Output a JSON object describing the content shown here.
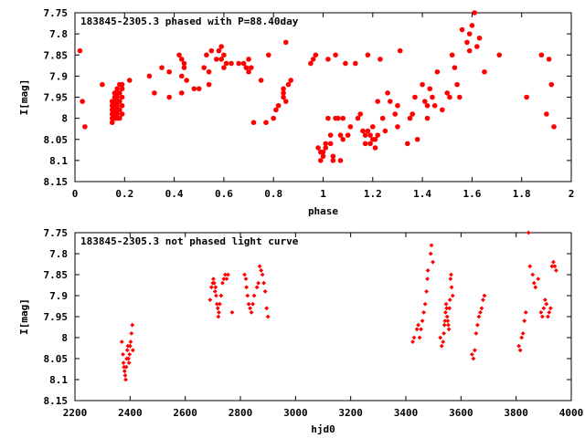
{
  "colors": {
    "points": "#ff0000",
    "axes": "#000000",
    "background": "#ffffff"
  },
  "chart_data": [
    {
      "type": "scatter",
      "title": "183845-2305.3 phased with P=88.40day",
      "xlabel": "phase",
      "ylabel": "I[mag]",
      "xlim": [
        0,
        2
      ],
      "ylim": [
        7.75,
        8.15
      ],
      "y_inverted": true,
      "grid": false,
      "marker": "filled-circle",
      "x_ticks": [
        "0",
        "0.2",
        "0.4",
        "0.6",
        "0.8",
        "1",
        "1.2",
        "1.4",
        "1.6",
        "1.8",
        "2"
      ],
      "y_ticks": [
        "7.75",
        "7.8",
        "7.85",
        "7.9",
        "7.95",
        "8",
        "8.05",
        "8.1",
        "8.15"
      ],
      "points": [
        [
          0.02,
          7.84
        ],
        [
          0.03,
          7.96
        ],
        [
          0.04,
          8.02
        ],
        [
          0.11,
          7.92
        ],
        [
          0.15,
          7.96
        ],
        [
          0.15,
          7.97
        ],
        [
          0.15,
          7.98
        ],
        [
          0.15,
          7.99
        ],
        [
          0.15,
          8.0
        ],
        [
          0.15,
          8.01
        ],
        [
          0.16,
          7.94
        ],
        [
          0.16,
          7.95
        ],
        [
          0.16,
          7.96
        ],
        [
          0.16,
          7.97
        ],
        [
          0.16,
          7.98
        ],
        [
          0.16,
          7.99
        ],
        [
          0.16,
          8.0
        ],
        [
          0.17,
          7.93
        ],
        [
          0.17,
          7.94
        ],
        [
          0.17,
          7.95
        ],
        [
          0.17,
          7.96
        ],
        [
          0.17,
          7.97
        ],
        [
          0.17,
          7.98
        ],
        [
          0.17,
          7.99
        ],
        [
          0.17,
          8.0
        ],
        [
          0.18,
          7.92
        ],
        [
          0.18,
          7.94
        ],
        [
          0.18,
          7.96
        ],
        [
          0.18,
          7.98
        ],
        [
          0.18,
          8.0
        ],
        [
          0.19,
          7.92
        ],
        [
          0.19,
          7.93
        ],
        [
          0.19,
          7.95
        ],
        [
          0.19,
          7.97
        ],
        [
          0.19,
          7.99
        ],
        [
          0.22,
          7.91
        ],
        [
          0.3,
          7.9
        ],
        [
          0.32,
          7.94
        ],
        [
          0.35,
          7.88
        ],
        [
          0.38,
          7.89
        ],
        [
          0.38,
          7.95
        ],
        [
          0.42,
          7.85
        ],
        [
          0.43,
          7.86
        ],
        [
          0.43,
          7.9
        ],
        [
          0.43,
          7.94
        ],
        [
          0.44,
          7.87
        ],
        [
          0.44,
          7.88
        ],
        [
          0.45,
          7.91
        ],
        [
          0.48,
          7.93
        ],
        [
          0.5,
          7.93
        ],
        [
          0.52,
          7.88
        ],
        [
          0.53,
          7.85
        ],
        [
          0.54,
          7.89
        ],
        [
          0.54,
          7.92
        ],
        [
          0.55,
          7.84
        ],
        [
          0.57,
          7.86
        ],
        [
          0.58,
          7.84
        ],
        [
          0.59,
          7.83
        ],
        [
          0.59,
          7.86
        ],
        [
          0.6,
          7.85
        ],
        [
          0.6,
          7.88
        ],
        [
          0.61,
          7.87
        ],
        [
          0.63,
          7.87
        ],
        [
          0.66,
          7.87
        ],
        [
          0.68,
          7.87
        ],
        [
          0.69,
          7.88
        ],
        [
          0.7,
          7.86
        ],
        [
          0.7,
          7.89
        ],
        [
          0.71,
          7.88
        ],
        [
          0.72,
          8.01
        ],
        [
          0.75,
          7.91
        ],
        [
          0.77,
          8.01
        ],
        [
          0.78,
          7.85
        ],
        [
          0.8,
          8.0
        ],
        [
          0.81,
          7.98
        ],
        [
          0.82,
          7.97
        ],
        [
          0.84,
          7.93
        ],
        [
          0.84,
          7.94
        ],
        [
          0.84,
          7.95
        ],
        [
          0.85,
          7.96
        ],
        [
          0.85,
          7.82
        ],
        [
          0.86,
          7.92
        ],
        [
          0.87,
          7.91
        ],
        [
          0.95,
          7.87
        ],
        [
          0.96,
          7.86
        ],
        [
          0.97,
          7.85
        ],
        [
          0.98,
          8.07
        ],
        [
          0.99,
          8.08
        ],
        [
          0.99,
          8.1
        ],
        [
          1.0,
          8.09
        ],
        [
          1.0,
          8.08
        ],
        [
          1.01,
          8.07
        ],
        [
          1.01,
          8.06
        ],
        [
          1.02,
          7.86
        ],
        [
          1.02,
          8.0
        ],
        [
          1.03,
          8.04
        ],
        [
          1.03,
          8.06
        ],
        [
          1.04,
          8.09
        ],
        [
          1.04,
          8.1
        ],
        [
          1.05,
          7.85
        ],
        [
          1.05,
          8.0
        ],
        [
          1.06,
          8.0
        ],
        [
          1.07,
          8.04
        ],
        [
          1.07,
          8.1
        ],
        [
          1.08,
          8.0
        ],
        [
          1.08,
          8.05
        ],
        [
          1.09,
          7.87
        ],
        [
          1.1,
          8.04
        ],
        [
          1.11,
          8.02
        ],
        [
          1.13,
          7.87
        ],
        [
          1.14,
          8.0
        ],
        [
          1.15,
          7.99
        ],
        [
          1.16,
          8.03
        ],
        [
          1.17,
          8.04
        ],
        [
          1.17,
          8.06
        ],
        [
          1.18,
          8.03
        ],
        [
          1.19,
          8.04
        ],
        [
          1.19,
          8.06
        ],
        [
          1.2,
          8.05
        ],
        [
          1.21,
          8.05
        ],
        [
          1.22,
          8.04
        ],
        [
          1.22,
          7.96
        ],
        [
          1.23,
          7.86
        ],
        [
          1.18,
          7.85
        ],
        [
          1.2,
          8.02
        ],
        [
          1.21,
          8.07
        ],
        [
          1.24,
          8.0
        ],
        [
          1.25,
          8.03
        ],
        [
          1.26,
          7.94
        ],
        [
          1.27,
          7.96
        ],
        [
          1.29,
          7.99
        ],
        [
          1.3,
          8.02
        ],
        [
          1.3,
          7.97
        ],
        [
          1.31,
          7.84
        ],
        [
          1.34,
          8.06
        ],
        [
          1.35,
          8.0
        ],
        [
          1.36,
          7.99
        ],
        [
          1.37,
          7.95
        ],
        [
          1.38,
          8.05
        ],
        [
          1.4,
          7.92
        ],
        [
          1.41,
          7.96
        ],
        [
          1.42,
          8.0
        ],
        [
          1.42,
          7.97
        ],
        [
          1.43,
          7.93
        ],
        [
          1.44,
          7.95
        ],
        [
          1.45,
          7.97
        ],
        [
          1.46,
          7.89
        ],
        [
          1.48,
          7.98
        ],
        [
          1.5,
          7.94
        ],
        [
          1.51,
          7.95
        ],
        [
          1.52,
          7.85
        ],
        [
          1.53,
          7.88
        ],
        [
          1.54,
          7.92
        ],
        [
          1.55,
          7.95
        ],
        [
          1.56,
          7.79
        ],
        [
          1.58,
          7.82
        ],
        [
          1.59,
          7.8
        ],
        [
          1.59,
          7.84
        ],
        [
          1.6,
          7.78
        ],
        [
          1.61,
          7.75
        ],
        [
          1.62,
          7.83
        ],
        [
          1.63,
          7.81
        ],
        [
          1.65,
          7.89
        ],
        [
          1.71,
          7.85
        ],
        [
          1.82,
          7.95
        ],
        [
          1.88,
          7.85
        ],
        [
          1.9,
          7.99
        ],
        [
          1.91,
          7.86
        ],
        [
          1.92,
          7.92
        ],
        [
          1.93,
          8.02
        ]
      ]
    },
    {
      "type": "scatter",
      "title": "183845-2305.3 not phased light curve",
      "xlabel": "hjd0",
      "ylabel": "I[mag]",
      "xlim": [
        2200,
        4000
      ],
      "ylim": [
        7.75,
        8.15
      ],
      "y_inverted": true,
      "grid": false,
      "marker": "small-diamond",
      "x_ticks": [
        "2200",
        "2400",
        "2600",
        "2800",
        "3000",
        "3200",
        "3400",
        "3600",
        "3800",
        "4000"
      ],
      "y_ticks": [
        "7.75",
        "7.8",
        "7.85",
        "7.9",
        "7.95",
        "8",
        "8.05",
        "8.1",
        "8.15"
      ],
      "points": [
        [
          2370,
          8.01
        ],
        [
          2374,
          8.04
        ],
        [
          2376,
          8.06
        ],
        [
          2378,
          8.07
        ],
        [
          2380,
          8.08
        ],
        [
          2382,
          8.09
        ],
        [
          2384,
          8.1
        ],
        [
          2386,
          8.07
        ],
        [
          2388,
          8.05
        ],
        [
          2390,
          8.03
        ],
        [
          2392,
          8.02
        ],
        [
          2394,
          8.05
        ],
        [
          2396,
          8.06
        ],
        [
          2398,
          8.04
        ],
        [
          2400,
          8.02
        ],
        [
          2402,
          8.01
        ],
        [
          2405,
          7.99
        ],
        [
          2408,
          7.97
        ],
        [
          2410,
          8.03
        ],
        [
          2690,
          7.91
        ],
        [
          2695,
          7.88
        ],
        [
          2700,
          7.87
        ],
        [
          2702,
          7.86
        ],
        [
          2705,
          7.87
        ],
        [
          2708,
          7.89
        ],
        [
          2710,
          7.88
        ],
        [
          2712,
          7.9
        ],
        [
          2715,
          7.92
        ],
        [
          2718,
          7.93
        ],
        [
          2720,
          7.95
        ],
        [
          2722,
          7.94
        ],
        [
          2725,
          7.92
        ],
        [
          2730,
          7.9
        ],
        [
          2735,
          7.87
        ],
        [
          2740,
          7.86
        ],
        [
          2745,
          7.85
        ],
        [
          2750,
          7.86
        ],
        [
          2755,
          7.85
        ],
        [
          2770,
          7.94
        ],
        [
          2815,
          7.85
        ],
        [
          2820,
          7.86
        ],
        [
          2822,
          7.88
        ],
        [
          2826,
          7.9
        ],
        [
          2830,
          7.92
        ],
        [
          2835,
          7.93
        ],
        [
          2840,
          7.94
        ],
        [
          2845,
          7.92
        ],
        [
          2850,
          7.9
        ],
        [
          2860,
          7.88
        ],
        [
          2865,
          7.87
        ],
        [
          2870,
          7.83
        ],
        [
          2875,
          7.84
        ],
        [
          2880,
          7.85
        ],
        [
          2885,
          7.87
        ],
        [
          2890,
          7.89
        ],
        [
          2895,
          7.93
        ],
        [
          2900,
          7.95
        ],
        [
          3425,
          8.01
        ],
        [
          3430,
          8.0
        ],
        [
          3440,
          7.98
        ],
        [
          3445,
          7.97
        ],
        [
          3450,
          8.0
        ],
        [
          3455,
          7.98
        ],
        [
          3460,
          7.96
        ],
        [
          3465,
          7.94
        ],
        [
          3470,
          7.92
        ],
        [
          3475,
          7.89
        ],
        [
          3478,
          7.86
        ],
        [
          3480,
          7.84
        ],
        [
          3490,
          7.8
        ],
        [
          3493,
          7.78
        ],
        [
          3498,
          7.82
        ],
        [
          3525,
          8.0
        ],
        [
          3530,
          8.02
        ],
        [
          3535,
          8.01
        ],
        [
          3538,
          7.99
        ],
        [
          3540,
          7.97
        ],
        [
          3542,
          7.96
        ],
        [
          3544,
          7.94
        ],
        [
          3546,
          7.92
        ],
        [
          3548,
          7.93
        ],
        [
          3550,
          7.95
        ],
        [
          3552,
          7.96
        ],
        [
          3554,
          7.97
        ],
        [
          3556,
          7.98
        ],
        [
          3558,
          7.93
        ],
        [
          3560,
          7.91
        ],
        [
          3562,
          7.86
        ],
        [
          3564,
          7.85
        ],
        [
          3566,
          7.88
        ],
        [
          3570,
          7.9
        ],
        [
          3640,
          8.04
        ],
        [
          3645,
          8.05
        ],
        [
          3650,
          8.03
        ],
        [
          3655,
          7.99
        ],
        [
          3660,
          7.97
        ],
        [
          3665,
          7.95
        ],
        [
          3670,
          7.94
        ],
        [
          3675,
          7.93
        ],
        [
          3680,
          7.91
        ],
        [
          3685,
          7.9
        ],
        [
          3810,
          8.02
        ],
        [
          3815,
          8.03
        ],
        [
          3820,
          8.0
        ],
        [
          3825,
          7.99
        ],
        [
          3830,
          7.96
        ],
        [
          3835,
          7.94
        ],
        [
          3845,
          7.75
        ],
        [
          3850,
          7.83
        ],
        [
          3860,
          7.85
        ],
        [
          3865,
          7.87
        ],
        [
          3870,
          7.88
        ],
        [
          3880,
          7.86
        ],
        [
          3890,
          7.94
        ],
        [
          3895,
          7.95
        ],
        [
          3900,
          7.93
        ],
        [
          3905,
          7.91
        ],
        [
          3910,
          7.92
        ],
        [
          3915,
          7.95
        ],
        [
          3920,
          7.94
        ],
        [
          3925,
          7.93
        ],
        [
          3930,
          7.83
        ],
        [
          3935,
          7.82
        ],
        [
          3940,
          7.83
        ],
        [
          3945,
          7.84
        ]
      ]
    }
  ]
}
